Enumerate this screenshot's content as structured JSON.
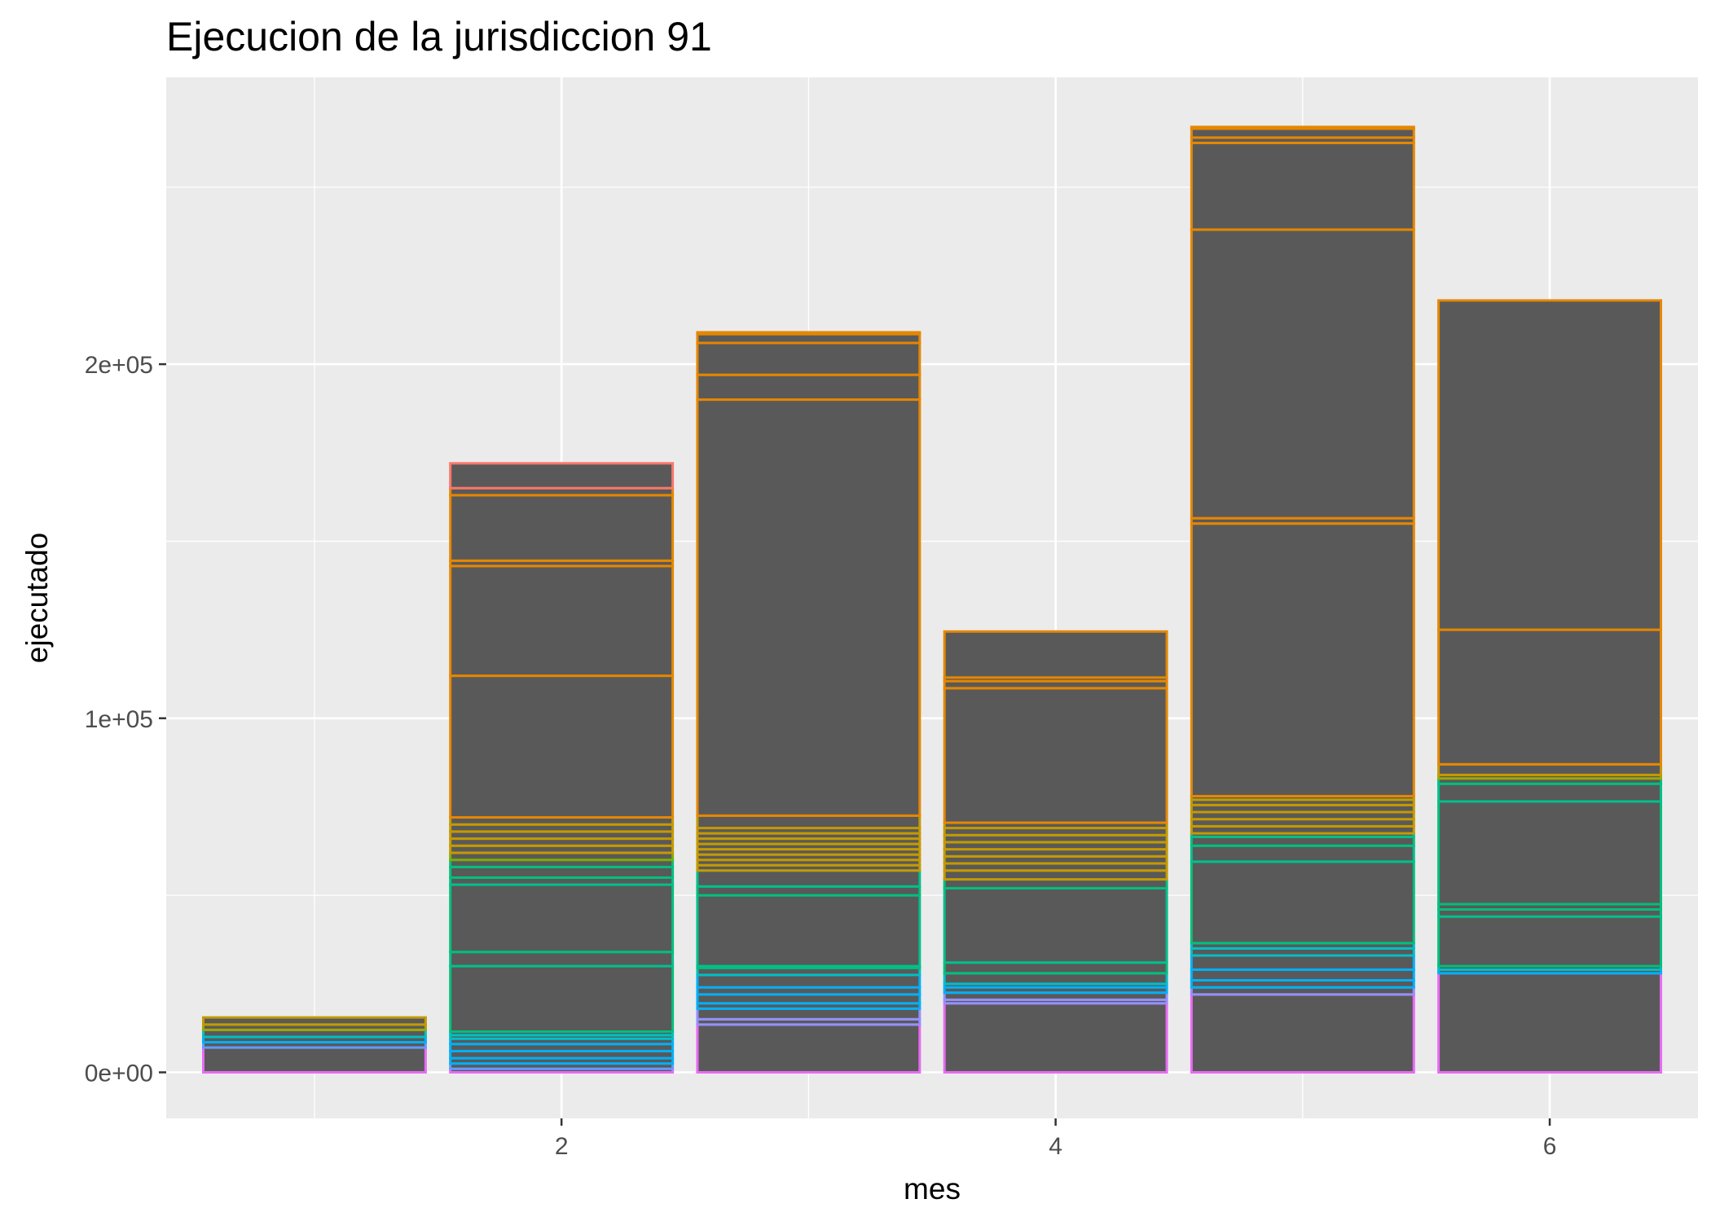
{
  "chart_data": {
    "type": "bar",
    "stacked": true,
    "title": "Ejecucion de la jurisdiccion 91",
    "xlabel": "mes",
    "ylabel": "ejecutado",
    "x_ticks": [
      2,
      4,
      6
    ],
    "x_tick_labels": [
      "2",
      "4",
      "6"
    ],
    "y_ticks": [
      0,
      100000,
      200000
    ],
    "y_tick_labels": [
      "0e+00",
      "1e+05",
      "2e+05"
    ],
    "xlim": [
      0.4,
      6.6
    ],
    "ylim": [
      -13000,
      281000
    ],
    "bar_width": 0.9,
    "fill_color": "#595959",
    "panel_background": "#ebebeb",
    "grid_color": "#ffffff",
    "categories": [
      1,
      2,
      3,
      4,
      5,
      6
    ],
    "totals": [
      15500,
      172000,
      209000,
      124500,
      267000,
      218000
    ],
    "segments": [
      {
        "mes": 1,
        "boundaries": [
          0,
          7000,
          8500,
          10000,
          12000,
          13500,
          15500
        ],
        "colors": [
          "#E76BF3",
          "#619CFF",
          "#00B0F6",
          "#00BFC4",
          "#A3A500",
          "#C49A00"
        ]
      },
      {
        "mes": 2,
        "boundaries": [
          0,
          1000,
          2500,
          4000,
          6000,
          8000,
          9500,
          10500,
          11500,
          30000,
          34000,
          53000,
          55000,
          58000,
          60000,
          62000,
          64000,
          66000,
          68000,
          70000,
          72000,
          112000,
          143000,
          144500,
          163000,
          165000,
          172000
        ],
        "colors": [
          "#E76BF3",
          "#619CFF",
          "#00B0F6",
          "#00B0F6",
          "#00B0F6",
          "#00B0F6",
          "#00BFC4",
          "#00BFC4",
          "#00BF7D",
          "#00C08B",
          "#00BF7D",
          "#00C08B",
          "#00BF7D",
          "#00BF7D",
          "#7CAE00",
          "#C49A00",
          "#C49A00",
          "#C49A00",
          "#C49A00",
          "#C49A00",
          "#E58700",
          "#E58700",
          "#E58700",
          "#E58700",
          "#E58700",
          "#F8766D"
        ]
      },
      {
        "mes": 3,
        "boundaries": [
          0,
          13500,
          15000,
          18000,
          19500,
          22000,
          24000,
          27500,
          29500,
          30000,
          50000,
          52500,
          57000,
          58500,
          60000,
          61500,
          63000,
          64500,
          66000,
          67500,
          69000,
          72500,
          190000,
          197000,
          206000,
          208500,
          209000
        ],
        "colors": [
          "#E76BF3",
          "#9590FF",
          "#9590FF",
          "#00B0F6",
          "#00B0F6",
          "#00B0F6",
          "#00B0F6",
          "#00BFC4",
          "#00BF7D",
          "#00C08B",
          "#00BF7D",
          "#00C08B",
          "#C49A00",
          "#C49A00",
          "#C49A00",
          "#C49A00",
          "#C49A00",
          "#C49A00",
          "#C49A00",
          "#C49A00",
          "#C49A00",
          "#E58700",
          "#E58700",
          "#E58700",
          "#E58700",
          "#E58700"
        ]
      },
      {
        "mes": 4,
        "boundaries": [
          0,
          19500,
          20500,
          22500,
          24000,
          25000,
          28000,
          31000,
          52000,
          54500,
          57000,
          59000,
          61000,
          63000,
          65000,
          67000,
          69000,
          70500,
          108500,
          110500,
          111500,
          124500
        ],
        "colors": [
          "#E76BF3",
          "#9590FF",
          "#9590FF",
          "#00B0F6",
          "#00B0F6",
          "#00BFC4",
          "#00BF7D",
          "#00C08B",
          "#00BF7D",
          "#C49A00",
          "#C49A00",
          "#C49A00",
          "#C49A00",
          "#C49A00",
          "#C49A00",
          "#C49A00",
          "#C49A00",
          "#E58700",
          "#E58700",
          "#E58700",
          "#E58700"
        ]
      },
      {
        "mes": 5,
        "boundaries": [
          0,
          22000,
          24000,
          26000,
          29000,
          33000,
          35000,
          36500,
          59500,
          64000,
          66500,
          67500,
          69500,
          71500,
          73500,
          75500,
          77000,
          78000,
          155000,
          156500,
          238000,
          262500,
          264000,
          266500,
          267000
        ],
        "colors": [
          "#E76BF3",
          "#9590FF",
          "#00B0F6",
          "#00B0F6",
          "#00B0F6",
          "#00BFC4",
          "#00BFC4",
          "#00BF7D",
          "#00C08B",
          "#00BF7D",
          "#00C08B",
          "#C49A00",
          "#C49A00",
          "#C49A00",
          "#C49A00",
          "#C49A00",
          "#C49A00",
          "#E58700",
          "#E58700",
          "#E58700",
          "#E58700",
          "#E58700",
          "#E58700",
          "#E58700"
        ]
      },
      {
        "mes": 6,
        "boundaries": [
          0,
          28000,
          29000,
          30000,
          44000,
          46000,
          47500,
          76500,
          81500,
          83000,
          84000,
          87000,
          125000,
          218000
        ],
        "colors": [
          "#E76BF3",
          "#00B0F6",
          "#00BFC4",
          "#00BF7D",
          "#00C08B",
          "#00BF7D",
          "#00BF7D",
          "#00C08B",
          "#00BF7D",
          "#A3A500",
          "#C49A00",
          "#E58700",
          "#E58700"
        ]
      }
    ]
  }
}
